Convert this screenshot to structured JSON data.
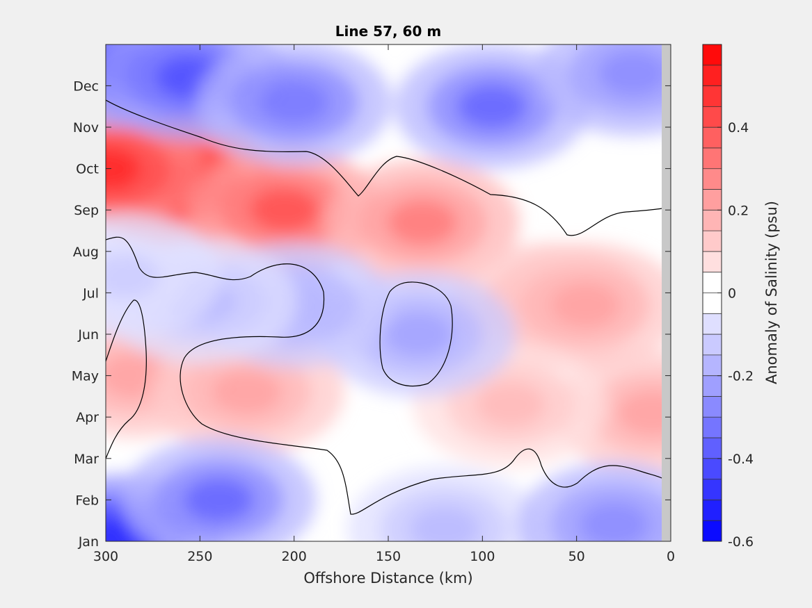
{
  "chart_data": {
    "type": "heatmap",
    "title": "Line 57, 60 m",
    "xlabel": "Offshore Distance (km)",
    "xlim": [
      300,
      0
    ],
    "x_reversed": true,
    "x_ticks": [
      300,
      250,
      200,
      150,
      100,
      50,
      0
    ],
    "y_ticks": [
      "Jan",
      "Feb",
      "Mar",
      "Apr",
      "May",
      "Jun",
      "Jul",
      "Aug",
      "Sep",
      "Oct",
      "Nov",
      "Dec"
    ],
    "colorbar": {
      "label": "Anomaly of Salinity (psu)",
      "range": [
        -0.6,
        0.6
      ],
      "ticks": [
        -0.6,
        -0.4,
        -0.2,
        0,
        0.2,
        0.4
      ],
      "tick_labels": [
        "-0.6",
        "-0.4",
        "-0.2",
        "0",
        "0.2",
        "0.4"
      ],
      "negative_color": "#0000ff",
      "zero_color": "#ffffff",
      "positive_color": "#ff0000"
    },
    "zero_contour": "black",
    "features": [
      {
        "x": 262,
        "month": 8.7,
        "anomaly": 0.58
      },
      {
        "x": 300,
        "month": 9.0,
        "anomaly": 0.5
      },
      {
        "x": 205,
        "month": 8.0,
        "anomaly": 0.42
      },
      {
        "x": 132,
        "month": 7.7,
        "anomaly": 0.3
      },
      {
        "x": 285,
        "month": 4.0,
        "anomaly": 0.2
      },
      {
        "x": 225,
        "month": 3.6,
        "anomaly": 0.22
      },
      {
        "x": 65,
        "month": 5.7,
        "anomaly": 0.22
      },
      {
        "x": 45,
        "month": 5.7,
        "anomaly": 0.24
      },
      {
        "x": 10,
        "month": 3.1,
        "anomaly": 0.2
      },
      {
        "x": 85,
        "month": 3.3,
        "anomaly": 0.15
      },
      {
        "x": 134,
        "month": 5.0,
        "anomaly": -0.24
      },
      {
        "x": 200,
        "month": 5.7,
        "anomaly": -0.2
      },
      {
        "x": 250,
        "month": 5.8,
        "anomaly": -0.18
      },
      {
        "x": 290,
        "month": 6.4,
        "anomaly": -0.12
      },
      {
        "x": 290,
        "month": 11.5,
        "anomaly": -0.45
      },
      {
        "x": 255,
        "month": 11.2,
        "anomaly": -0.4
      },
      {
        "x": 200,
        "month": 10.6,
        "anomaly": -0.34
      },
      {
        "x": 95,
        "month": 10.5,
        "anomaly": -0.36
      },
      {
        "x": 20,
        "month": 11.3,
        "anomaly": -0.28
      },
      {
        "x": 290,
        "month": 0.1,
        "anomaly": -0.5
      },
      {
        "x": 240,
        "month": 1.0,
        "anomaly": -0.36
      },
      {
        "x": 120,
        "month": 0.3,
        "anomaly": -0.18
      },
      {
        "x": 30,
        "month": 0.4,
        "anomaly": -0.3
      }
    ]
  }
}
